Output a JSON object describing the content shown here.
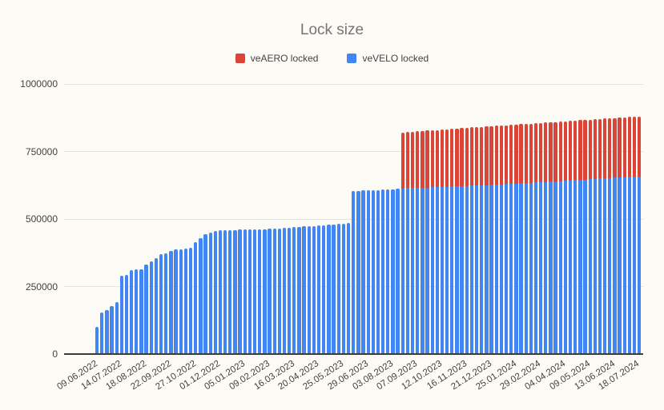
{
  "title": "Lock size",
  "legend": {
    "items": [
      {
        "label": "veAERO locked",
        "color": "#DB4437"
      },
      {
        "label": "veVELO locked",
        "color": "#4285F4"
      }
    ]
  },
  "y_axis": {
    "tick_labels": [
      "0",
      "250000",
      "500000",
      "750000",
      "1000000"
    ],
    "max": 1000000
  },
  "x_axis": {
    "tick_labels": [
      "09.06.2022",
      "14.07.2022",
      "18.08.2022",
      "22.09.2022",
      "27.10.2022",
      "01.12.2022",
      "05.01.2023",
      "09.02.2023",
      "16.03.2023",
      "20.04.2023",
      "25.05.2023",
      "29.06.2023",
      "03.08.2023",
      "07.09.2023",
      "12.10.2023",
      "16.11.2023",
      "21.12.2023",
      "25.01.2024",
      "29.02.2024",
      "04.04.2024",
      "09.05.2024",
      "13.06.2024",
      "18.07.2024"
    ],
    "bars_per_tick": 5,
    "interval": "weekly"
  },
  "chart_data": {
    "type": "bar",
    "stacked": true,
    "title": "Lock size",
    "xlabel": "",
    "ylabel": "",
    "ylim": [
      0,
      1000000
    ],
    "grid": true,
    "legend_position": "top-center",
    "x_start": "09.06.2022",
    "x_end": "18.07.2024",
    "x_interval_days": 7,
    "x_tick_labels": [
      "09.06.2022",
      "14.07.2022",
      "18.08.2022",
      "22.09.2022",
      "27.10.2022",
      "01.12.2022",
      "05.01.2023",
      "09.02.2023",
      "16.03.2023",
      "20.04.2023",
      "25.05.2023",
      "29.06.2023",
      "03.08.2023",
      "07.09.2023",
      "12.10.2023",
      "16.11.2023",
      "21.12.2023",
      "25.01.2024",
      "29.02.2024",
      "04.04.2024",
      "09.05.2024",
      "13.06.2024",
      "18.07.2024"
    ],
    "series": [
      {
        "name": "veVELO locked",
        "color": "#4285F4",
        "values": [
          101000,
          155000,
          163000,
          178000,
          193000,
          289000,
          292000,
          311000,
          313000,
          315000,
          330000,
          344000,
          354000,
          371000,
          374000,
          383000,
          387000,
          389000,
          390000,
          393000,
          415000,
          428000,
          445000,
          451000,
          456000,
          458000,
          459000,
          459000,
          460000,
          461000,
          461000,
          462000,
          462000,
          463000,
          463000,
          464000,
          465000,
          466000,
          467000,
          468000,
          470000,
          471000,
          472000,
          473000,
          474000,
          475000,
          476000,
          478000,
          479000,
          481000,
          482000,
          484000,
          603000,
          605000,
          606000,
          607000,
          607000,
          608000,
          609000,
          610000,
          610000,
          611000,
          613000,
          614000,
          614000,
          615000,
          616000,
          616000,
          617000,
          617000,
          618000,
          619000,
          620000,
          620000,
          621000,
          622000,
          623000,
          623000,
          624000,
          625000,
          626000,
          627000,
          628000,
          629000,
          630000,
          631000,
          632000,
          633000,
          634000,
          635000,
          636000,
          637000,
          638000,
          639000,
          640000,
          641000,
          643000,
          644000,
          645000,
          646000,
          648000,
          649000,
          650000,
          651000,
          652000,
          653000,
          654000,
          655000,
          656000,
          657000,
          658000
        ]
      },
      {
        "name": "veAERO locked",
        "color": "#DB4437",
        "values": [
          0,
          0,
          0,
          0,
          0,
          0,
          0,
          0,
          0,
          0,
          0,
          0,
          0,
          0,
          0,
          0,
          0,
          0,
          0,
          0,
          0,
          0,
          0,
          0,
          0,
          0,
          0,
          0,
          0,
          0,
          0,
          0,
          0,
          0,
          0,
          0,
          0,
          0,
          0,
          0,
          0,
          0,
          0,
          0,
          0,
          0,
          0,
          0,
          0,
          0,
          0,
          0,
          0,
          0,
          0,
          0,
          0,
          0,
          0,
          0,
          0,
          0,
          207000,
          208000,
          209000,
          210000,
          210000,
          211000,
          211000,
          212000,
          213000,
          213000,
          214000,
          214000,
          215000,
          216000,
          216000,
          216000,
          217000,
          217000,
          217000,
          218000,
          218000,
          218000,
          218000,
          218000,
          219000,
          219000,
          219000,
          219000,
          219000,
          220000,
          220000,
          220000,
          220000,
          220000,
          220000,
          221000,
          221000,
          221000,
          220000,
          221000,
          221000,
          221000,
          221000,
          221000,
          222000,
          222000,
          222000,
          222000,
          222000
        ]
      }
    ]
  }
}
